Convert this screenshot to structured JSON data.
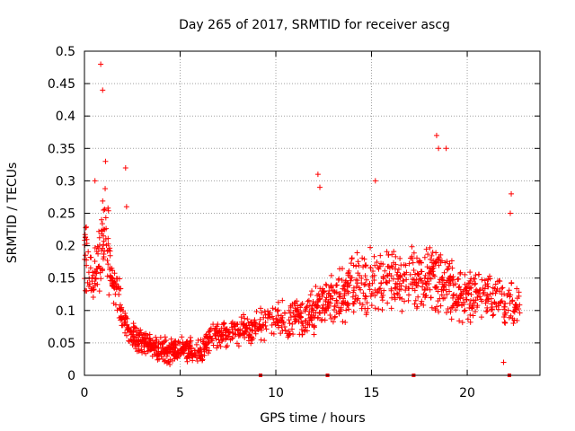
{
  "chart_data": {
    "type": "scatter",
    "title": "Day 265 of 2017, SRMTID for receiver ascg",
    "xlabel": "GPS time / hours",
    "ylabel": "SRMTID / TECUs",
    "xlim": [
      0,
      23.8
    ],
    "ylim": [
      0,
      0.5
    ],
    "x_ticks": [
      0,
      5,
      10,
      15,
      20
    ],
    "x_tick_labels": [
      "0",
      "5",
      "10",
      "15",
      "20"
    ],
    "y_ticks": [
      0,
      0.05,
      0.1,
      0.15,
      0.2,
      0.25,
      0.3,
      0.35,
      0.4,
      0.45,
      0.5
    ],
    "y_tick_labels": [
      "0",
      "0.05",
      "0.1",
      "0.15",
      "0.2",
      "0.25",
      "0.3",
      "0.35",
      "0.4",
      "0.45",
      "0.5"
    ],
    "grid": true,
    "marker": "+",
    "colors": {
      "series": "#ff0000"
    },
    "trend": {
      "x": [
        0,
        0.2,
        0.5,
        0.8,
        1.1,
        1.4,
        1.7,
        2.0,
        2.3,
        2.7,
        3.0,
        3.5,
        4.0,
        4.5,
        5.0,
        5.5,
        6.0,
        6.5,
        7.0,
        7.5,
        8.0,
        8.5,
        9.0,
        9.5,
        10.0,
        10.5,
        11.0,
        11.5,
        12.0,
        12.5,
        13.0,
        13.5,
        14.0,
        14.5,
        15.0,
        15.5,
        16.0,
        16.5,
        17.0,
        17.5,
        18.0,
        18.5,
        19.0,
        19.5,
        20.0,
        20.5,
        21.0,
        21.5,
        22.0,
        22.5,
        22.8
      ],
      "y": [
        0.2,
        0.16,
        0.14,
        0.19,
        0.24,
        0.15,
        0.12,
        0.1,
        0.07,
        0.055,
        0.05,
        0.045,
        0.04,
        0.037,
        0.04,
        0.042,
        0.035,
        0.055,
        0.062,
        0.065,
        0.07,
        0.07,
        0.075,
        0.08,
        0.082,
        0.085,
        0.09,
        0.09,
        0.1,
        0.11,
        0.12,
        0.125,
        0.14,
        0.14,
        0.15,
        0.14,
        0.15,
        0.14,
        0.15,
        0.14,
        0.16,
        0.15,
        0.14,
        0.13,
        0.12,
        0.12,
        0.13,
        0.12,
        0.1,
        0.11,
        0.12
      ]
    },
    "spikes": [
      {
        "x": 0.85,
        "y": 0.48
      },
      {
        "x": 0.95,
        "y": 0.44
      },
      {
        "x": 0.55,
        "y": 0.3
      },
      {
        "x": 1.1,
        "y": 0.33
      },
      {
        "x": 2.15,
        "y": 0.32
      },
      {
        "x": 2.2,
        "y": 0.26
      },
      {
        "x": 12.2,
        "y": 0.31
      },
      {
        "x": 12.3,
        "y": 0.29
      },
      {
        "x": 15.2,
        "y": 0.3
      },
      {
        "x": 18.4,
        "y": 0.37
      },
      {
        "x": 18.5,
        "y": 0.35
      },
      {
        "x": 18.9,
        "y": 0.35
      },
      {
        "x": 22.3,
        "y": 0.28
      },
      {
        "x": 22.25,
        "y": 0.25
      },
      {
        "x": 21.9,
        "y": 0.02
      }
    ],
    "axis_markers": [
      {
        "x": 9.2,
        "y": 0
      },
      {
        "x": 12.7,
        "y": 0
      },
      {
        "x": 17.2,
        "y": 0
      },
      {
        "x": 22.2,
        "y": 0
      }
    ]
  }
}
